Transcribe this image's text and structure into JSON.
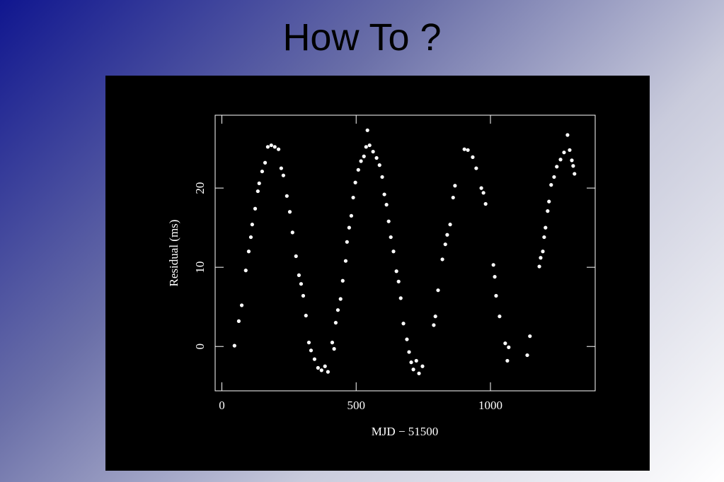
{
  "slide": {
    "title": "How To ?"
  },
  "chart_data": {
    "type": "scatter",
    "xlabel": "MJD − 51500",
    "ylabel": "Residual (ms)",
    "color": "#ffffff",
    "xlim": [
      -25,
      1390
    ],
    "ylim": [
      -5.6,
      29.2
    ],
    "xticks": [
      0,
      500,
      1000
    ],
    "yticks": [
      0,
      10,
      20
    ],
    "x": [
      47,
      63,
      74,
      89,
      100,
      108,
      113,
      124,
      134,
      139,
      150,
      161,
      171,
      184,
      197,
      211,
      221,
      229,
      242,
      253,
      263,
      276,
      287,
      295,
      303,
      313,
      324,
      332,
      345,
      358,
      371,
      384,
      395,
      411,
      418,
      424,
      432,
      442,
      450,
      461,
      466,
      474,
      482,
      489,
      497,
      508,
      518,
      529,
      537,
      542,
      550,
      563,
      576,
      587,
      597,
      605,
      613,
      621,
      629,
      639,
      650,
      658,
      666,
      676,
      689,
      697,
      705,
      713,
      724,
      734,
      747,
      789,
      795,
      805,
      821,
      832,
      839,
      850,
      861,
      868,
      903,
      916,
      934,
      947,
      966,
      974,
      982,
      1011,
      1016,
      1021,
      1034,
      1055,
      1068,
      1063,
      1137,
      1147,
      1182,
      1187,
      1195,
      1200,
      1205,
      1213,
      1218,
      1226,
      1237,
      1247,
      1261,
      1274,
      1287,
      1295,
      1303,
      1308,
      1313
    ],
    "values": [
      0.1,
      3.2,
      5.2,
      9.6,
      12,
      13.8,
      15.4,
      17.4,
      19.6,
      20.6,
      22.1,
      23.2,
      25.2,
      25.4,
      25.2,
      24.9,
      22.5,
      21.6,
      19,
      17,
      14.4,
      11.4,
      9,
      7.9,
      6.4,
      3.9,
      0.5,
      -0.5,
      -1.6,
      -2.7,
      -3,
      -2.5,
      -3.2,
      0.5,
      -0.3,
      3,
      4.6,
      6,
      8.3,
      10.8,
      13.2,
      15,
      16.5,
      18.8,
      20.7,
      22.3,
      23.4,
      24,
      25.2,
      27.3,
      25.4,
      24.6,
      23.8,
      22.9,
      21.4,
      19.2,
      17.9,
      15.8,
      13.8,
      12,
      9.5,
      8.2,
      6.1,
      2.9,
      0.9,
      -0.7,
      -2,
      -2.9,
      -1.8,
      -3.4,
      -2.5,
      2.7,
      3.8,
      7.1,
      11,
      12.9,
      14.1,
      15.4,
      18.8,
      20.3,
      24.9,
      24.8,
      23.9,
      22.5,
      20,
      19.4,
      18,
      10.3,
      8.8,
      6.4,
      3.8,
      0.4,
      -0.1,
      -1.8,
      -1.1,
      1.3,
      10.1,
      11.2,
      12,
      13.8,
      15,
      17.1,
      18.3,
      20.4,
      21.4,
      22.7,
      23.6,
      24.5,
      26.7,
      24.8,
      23.5,
      22.8,
      21.8
    ]
  }
}
